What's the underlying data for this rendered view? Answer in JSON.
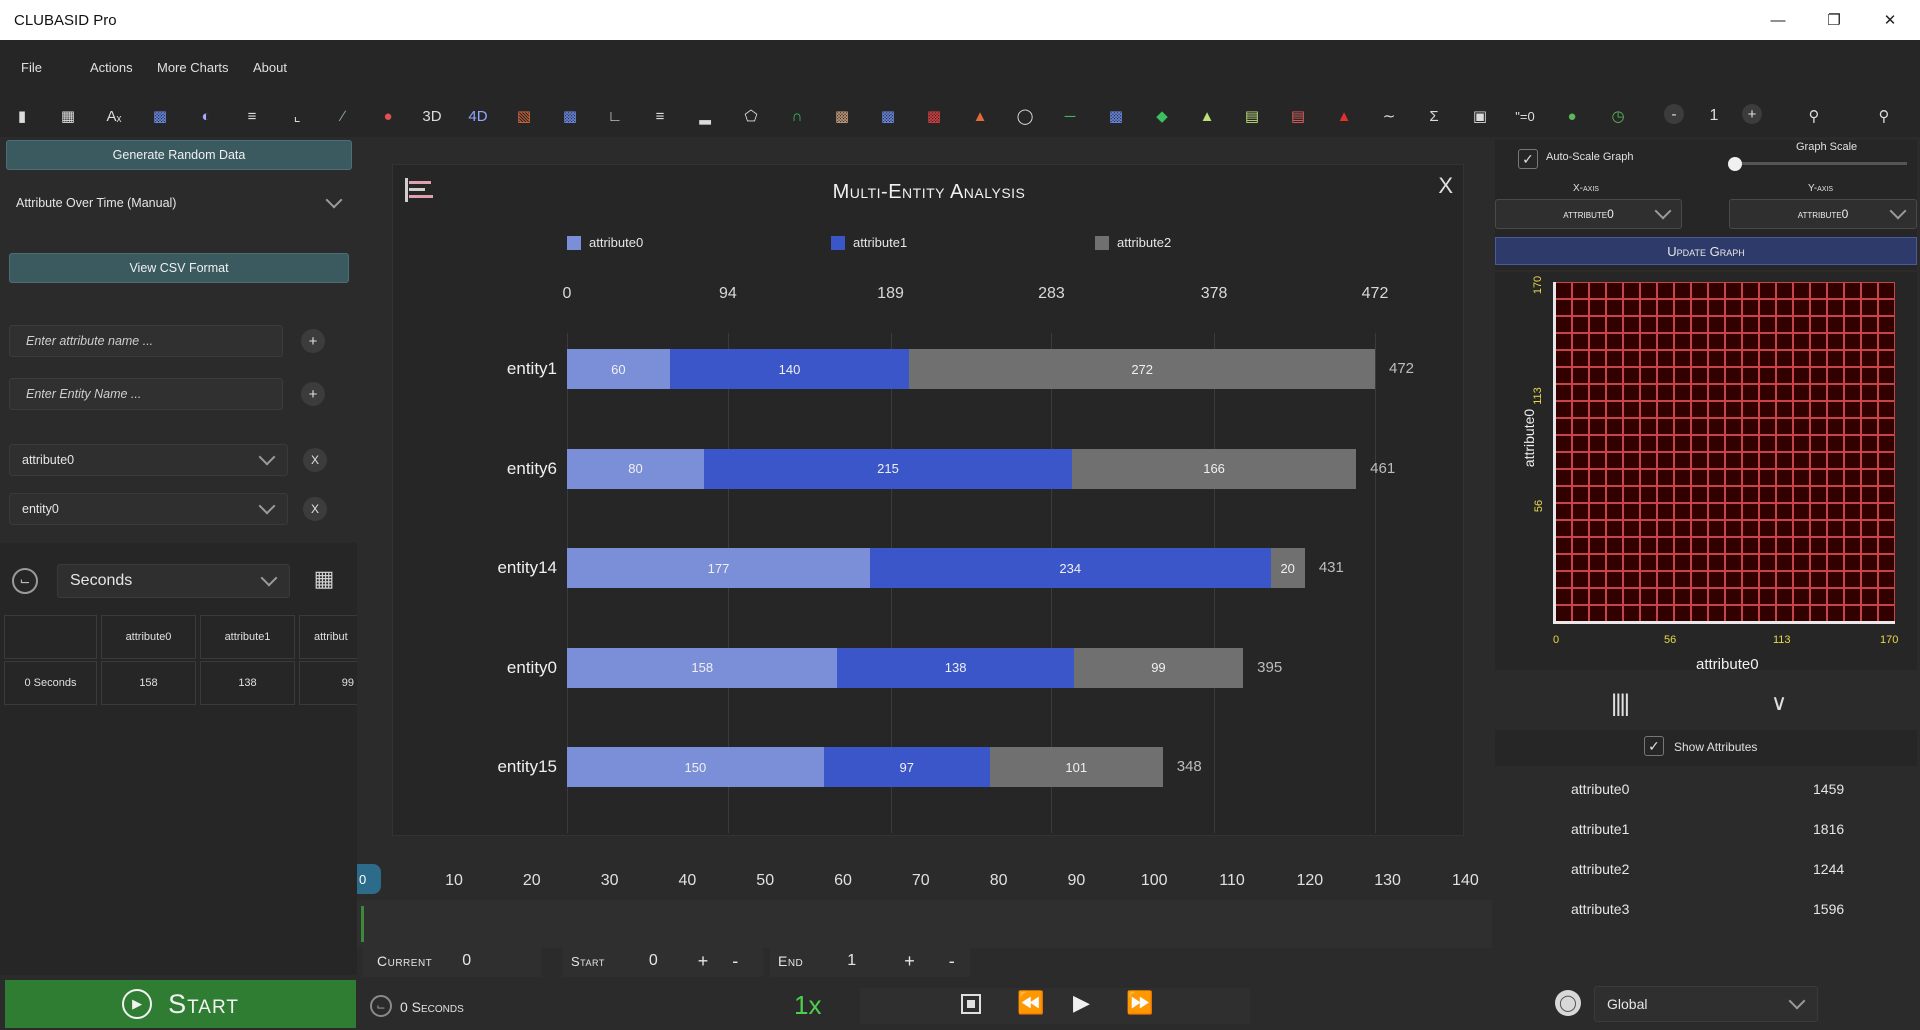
{
  "window": {
    "title": "CLUBASID Pro"
  },
  "menu": {
    "items": [
      "File",
      "Actions",
      "More Charts",
      "About"
    ]
  },
  "toolbar": {
    "labels": {
      "t3d": "3D",
      "t4d": "4D",
      "zero": "\"=0"
    },
    "zoom_value": "1",
    "minus": "-",
    "plus": "+"
  },
  "left": {
    "generate_label": "Generate Random Data",
    "mode_dropdown": "Attribute Over Time (Manual)",
    "csv_label": "View CSV Format",
    "attr_placeholder": "Enter attribute name ...",
    "entity_placeholder": "Enter Entity Name ...",
    "attr_select": "attribute0",
    "entity_select": "entity0",
    "add": "+",
    "remove": "X",
    "time_unit": "Seconds",
    "table": {
      "headers": [
        "",
        "attribute0",
        "attribute1",
        "attribut"
      ],
      "row": [
        "0 Seconds",
        "158",
        "138",
        "99"
      ]
    },
    "start_label": "Start"
  },
  "chart": {
    "close": "X"
  },
  "chart_data": {
    "type": "bar",
    "orientation": "horizontal-stacked",
    "title": "Multi-Entity Analysis",
    "categories": [
      "entity1",
      "entity6",
      "entity14",
      "entity0",
      "entity15"
    ],
    "series": [
      {
        "name": "attribute0",
        "values": [
          60,
          80,
          177,
          158,
          150
        ]
      },
      {
        "name": "attribute1",
        "values": [
          140,
          215,
          234,
          138,
          97
        ]
      },
      {
        "name": "attribute2",
        "values": [
          272,
          166,
          20,
          99,
          101
        ]
      }
    ],
    "totals": [
      472,
      461,
      431,
      395,
      348
    ],
    "xticks": [
      "0",
      "94",
      "189",
      "283",
      "378",
      "472"
    ],
    "xlim": [
      0,
      472
    ],
    "legend_position": "top",
    "grid": true,
    "colors": [
      "#7b8fd8",
      "#3a56c8",
      "#707070"
    ]
  },
  "timeline": {
    "ticks": [
      "10",
      "20",
      "30",
      "40",
      "50",
      "60",
      "70",
      "80",
      "90",
      "100",
      "110",
      "120",
      "130",
      "140"
    ],
    "marker": "0",
    "current_label": "Current",
    "current_value": "0",
    "start_label": "Start",
    "start_value": "0",
    "end_label": "End",
    "end_value": "1",
    "elapsed": "0 Seconds",
    "speed": "1x"
  },
  "right": {
    "autoscale_label": "Auto-Scale Graph",
    "graph_scale_label": "Graph Scale",
    "x_axis_label": "X-axis",
    "y_axis_label": "Y-axis",
    "x_axis_value": "attribute0",
    "y_axis_value": "attribute0",
    "update_label": "Update Graph",
    "heat_yticks": [
      "170",
      "113",
      "56"
    ],
    "heat_xticks": [
      "0",
      "56",
      "113",
      "170"
    ],
    "heat_xlabel": "attribute0",
    "heat_ylabel": "attribute0",
    "show_attributes_label": "Show Attributes",
    "attributes": [
      {
        "name": "attribute0",
        "value": "1459"
      },
      {
        "name": "attribute1",
        "value": "1816"
      },
      {
        "name": "attribute2",
        "value": "1244"
      },
      {
        "name": "attribute3",
        "value": "1596"
      }
    ],
    "scope": "Global"
  }
}
